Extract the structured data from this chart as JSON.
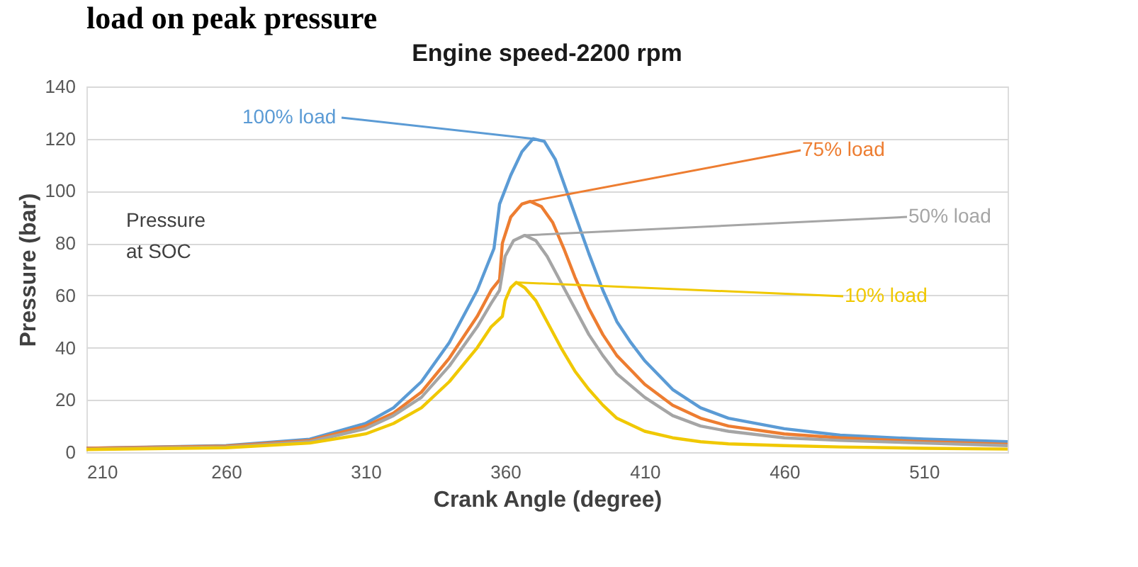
{
  "chart_data": {
    "type": "line",
    "title": "Engine speed-2200 rpm",
    "xlabel": "Crank Angle (degree)",
    "ylabel": "Pressure (bar)",
    "annotations": [
      "load on peak pressure",
      "Pressure at SOC"
    ],
    "xlim": [
      210,
      540
    ],
    "xticks": [
      210,
      260,
      310,
      360,
      410,
      460,
      510
    ],
    "ylim": [
      0,
      140
    ],
    "yticks": [
      0,
      20,
      40,
      60,
      80,
      100,
      120,
      140
    ],
    "grid": "y",
    "legend": false,
    "marker": "none",
    "line_style": "solid",
    "series": [
      {
        "name": "100% load",
        "color": "#5b9bd5",
        "x": [
          210,
          260,
          290,
          310,
          320,
          330,
          340,
          350,
          356,
          358,
          362,
          366,
          370,
          374,
          378,
          382,
          386,
          390,
          395,
          400,
          405,
          410,
          420,
          430,
          440,
          460,
          480,
          510,
          540
        ],
        "values": [
          1.5,
          2.5,
          5,
          11,
          17,
          27,
          42,
          62,
          78,
          95,
          106,
          115,
          120,
          119,
          112,
          100,
          88,
          76,
          62,
          50,
          42,
          35,
          24,
          17,
          13,
          9,
          6.5,
          5,
          4
        ]
      },
      {
        "name": "75% load",
        "color": "#ed7d31",
        "x": [
          210,
          260,
          290,
          310,
          320,
          330,
          340,
          350,
          355,
          358,
          359,
          362,
          366,
          369,
          373,
          377,
          381,
          385,
          390,
          395,
          400,
          410,
          420,
          430,
          440,
          460,
          480,
          510,
          540
        ],
        "values": [
          1.5,
          2.3,
          4.5,
          10,
          15,
          23,
          36,
          52,
          62,
          66,
          80,
          90,
          95,
          96,
          94,
          88,
          78,
          67,
          55,
          45,
          37,
          26,
          18,
          13,
          10,
          7,
          5.5,
          4,
          3
        ]
      },
      {
        "name": "50% load",
        "color": "#a5a5a5",
        "x": [
          210,
          260,
          290,
          310,
          320,
          330,
          340,
          350,
          355,
          358,
          360,
          363,
          367,
          371,
          375,
          380,
          385,
          390,
          395,
          400,
          410,
          420,
          430,
          440,
          460,
          480,
          510,
          540
        ],
        "values": [
          1.2,
          2,
          4,
          9,
          14,
          21,
          33,
          48,
          57,
          62,
          75,
          81,
          83,
          81,
          75,
          65,
          55,
          45,
          37,
          30,
          21,
          14,
          10,
          8,
          5.5,
          4.5,
          3.5,
          2.5
        ]
      },
      {
        "name": "10% load",
        "color": "#f0c800",
        "x": [
          210,
          260,
          290,
          310,
          320,
          330,
          340,
          350,
          355,
          359,
          360,
          362,
          364,
          367,
          371,
          375,
          380,
          385,
          390,
          395,
          400,
          410,
          420,
          430,
          440,
          460,
          480,
          510,
          540
        ],
        "values": [
          1,
          1.7,
          3.5,
          7,
          11,
          17,
          27,
          40,
          48,
          52,
          58,
          63,
          65,
          63,
          58,
          50,
          40,
          31,
          24,
          18,
          13,
          8,
          5.5,
          4,
          3.2,
          2.5,
          2,
          1.5,
          1.2
        ]
      }
    ]
  }
}
